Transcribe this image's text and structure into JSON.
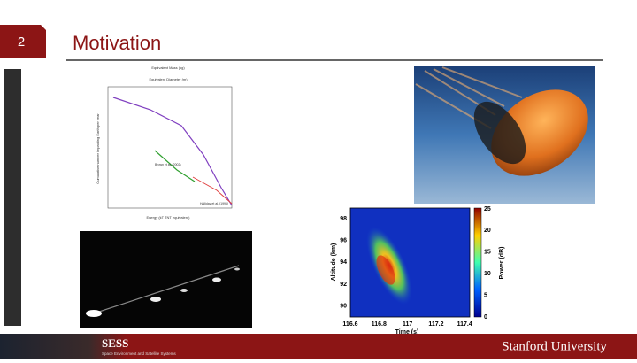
{
  "slide": {
    "number": "2",
    "title": "Motivation"
  },
  "flux_plot": {
    "top_axis_1": "Equivalent Mass (kg)",
    "top_axis_2": "Equivalent Diameter (m)",
    "x_axis": "Energy (kT TNT equivalent)",
    "y_axis": "Cumulative number impacting Earth per year",
    "labels": [
      "Brown et al. (2002)",
      "Halliday et al. (1996)"
    ]
  },
  "radar_plot": {
    "y_axis": "Altitude (km)",
    "x_axis": "Time (s)",
    "colorbar_label": "Power (dB)",
    "yticks": [
      "98",
      "96",
      "94",
      "92",
      "90"
    ],
    "xticks": [
      "116.6",
      "116.8",
      "117",
      "117.2",
      "117.4"
    ],
    "cticks": [
      "25",
      "20",
      "15",
      "10",
      "5",
      "0"
    ]
  },
  "footer": {
    "logo": "SESS",
    "logo_subtitle": "Space Environment and Satellite Systems",
    "university": "Stanford University"
  }
}
